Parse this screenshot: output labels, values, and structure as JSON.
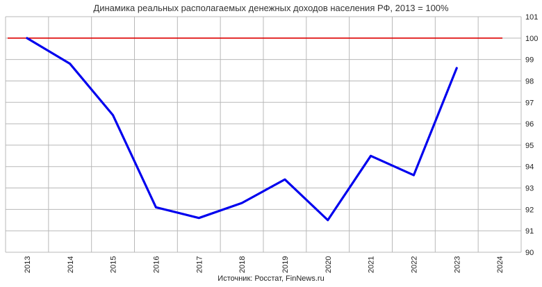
{
  "chart_data": {
    "type": "line",
    "title": "Динамика реальных располагаемых денежных доходов населения РФ, 2013 = 100%",
    "source": "Источник: Росстат, FinNews.ru",
    "x": [
      "2013",
      "2014",
      "2015",
      "2016",
      "2017",
      "2018",
      "2019",
      "2020",
      "2021",
      "2022",
      "2023",
      "2024"
    ],
    "series": [
      {
        "values": [
          100,
          98.8,
          96.4,
          92.1,
          91.6,
          92.3,
          93.4,
          91.5,
          94.5,
          93.6,
          98.6,
          null
        ],
        "color": "#0000ee"
      }
    ],
    "reference_line": {
      "y": 100,
      "color": "#dd0000"
    },
    "ylim": [
      90,
      101
    ],
    "yticks": [
      90,
      91,
      92,
      93,
      94,
      95,
      96,
      97,
      98,
      99,
      100,
      101
    ],
    "grid": true,
    "y_axis_side": "right"
  }
}
